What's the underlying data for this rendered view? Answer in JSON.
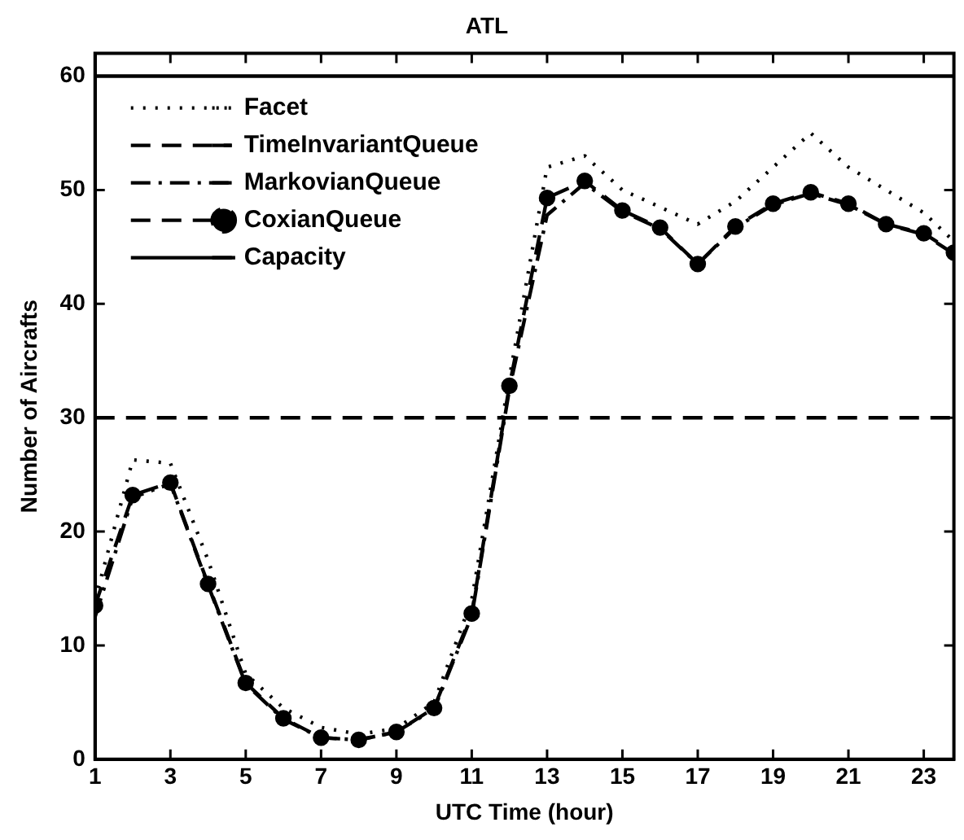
{
  "chart_data": {
    "type": "line",
    "title": "ATL",
    "xlabel": "UTC Time (hour)",
    "ylabel": "Number of Aircrafts",
    "x": [
      1,
      2,
      3,
      4,
      5,
      6,
      7,
      8,
      9,
      10,
      11,
      12,
      13,
      14,
      15,
      16,
      17,
      18,
      19,
      20,
      21,
      22,
      23,
      23.8
    ],
    "xlim": [
      1,
      23.8
    ],
    "xticks": [
      1,
      3,
      5,
      7,
      9,
      11,
      13,
      15,
      17,
      19,
      21,
      23
    ],
    "ylim": [
      0,
      62
    ],
    "yticks": [
      0,
      10,
      20,
      30,
      40,
      50,
      60
    ],
    "grid": false,
    "legend": "top left",
    "marker": "none",
    "series": [
      {
        "name": "Facet",
        "color": "#000000",
        "line_style": "dotted",
        "values": [
          14,
          26.3,
          26,
          17.5,
          7.5,
          4.5,
          2.8,
          2.2,
          2.7,
          5,
          14,
          33.5,
          52,
          53,
          50,
          48.5,
          47,
          49,
          52,
          55,
          52,
          50,
          48,
          45.5
        ]
      },
      {
        "name": "TimeInvariantQueue",
        "color": "#000000",
        "line_style": "dashed",
        "values": [
          30,
          30,
          30,
          30,
          30,
          30,
          30,
          30,
          30,
          30,
          30,
          30,
          30,
          30,
          30,
          30,
          30,
          30,
          30,
          30,
          30,
          30,
          30,
          30
        ]
      },
      {
        "name": "MarkovianQueue",
        "color": "#000000",
        "line_style": "dashdot",
        "values": [
          12.5,
          23,
          24.2,
          15.3,
          6.6,
          3.5,
          1.9,
          1.7,
          2.4,
          4.4,
          12.6,
          32.5,
          47.8,
          50.6,
          48.1,
          46.6,
          43.5,
          46.7,
          48.7,
          49.7,
          48.7,
          47,
          46.1,
          44.4
        ]
      },
      {
        "name": "CoxianQueue",
        "color": "#000000",
        "line_style": "dashed",
        "marker": "circle",
        "values": [
          13.5,
          23.2,
          24.3,
          15.4,
          6.7,
          3.6,
          1.9,
          1.7,
          2.4,
          4.5,
          12.8,
          32.8,
          49.3,
          50.8,
          48.2,
          46.7,
          43.5,
          46.8,
          48.8,
          49.8,
          48.8,
          47,
          46.2,
          44.5
        ]
      },
      {
        "name": "Capacity",
        "color": "#000000",
        "line_style": "solid",
        "values": [
          60,
          60,
          60,
          60,
          60,
          60,
          60,
          60,
          60,
          60,
          60,
          60,
          60,
          60,
          60,
          60,
          60,
          60,
          60,
          60,
          60,
          60,
          60,
          60
        ]
      }
    ]
  }
}
